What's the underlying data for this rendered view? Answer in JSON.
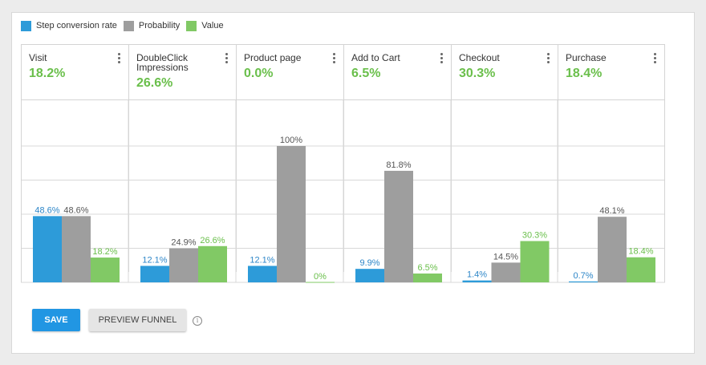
{
  "legend": {
    "items": [
      {
        "label": "Step conversion rate",
        "color": "#2d9bd9"
      },
      {
        "label": "Probability",
        "color": "#9e9e9e"
      },
      {
        "label": "Value",
        "color": "#81c965"
      }
    ]
  },
  "colors": {
    "step_conversion": "#2d9bd9",
    "probability": "#9e9e9e",
    "value": "#81c965",
    "value_text": "#6abf4b",
    "primary_button": "#2196e3"
  },
  "steps": [
    {
      "name": "Visit",
      "value": "18.2%"
    },
    {
      "name": "DoubleClick Impressions",
      "value": "26.6%"
    },
    {
      "name": "Product page",
      "value": "0.0%"
    },
    {
      "name": "Add to Cart",
      "value": "6.5%"
    },
    {
      "name": "Checkout",
      "value": "30.3%"
    },
    {
      "name": "Purchase",
      "value": "18.4%"
    }
  ],
  "chart_data": {
    "type": "bar",
    "categories": [
      "Visit",
      "DoubleClick Impressions",
      "Product page",
      "Add to Cart",
      "Checkout",
      "Purchase"
    ],
    "series": [
      {
        "name": "Step conversion rate",
        "values": [
          48.6,
          12.1,
          12.1,
          9.9,
          1.4,
          0.7
        ],
        "labels": [
          "48.6%",
          "12.1%",
          "12.1%",
          "9.9%",
          "1.4%",
          "0.7%"
        ]
      },
      {
        "name": "Probability",
        "values": [
          48.6,
          24.9,
          100,
          81.8,
          14.5,
          48.1
        ],
        "labels": [
          "48.6%",
          "24.9%",
          "100%",
          "81.8%",
          "14.5%",
          "48.1%"
        ]
      },
      {
        "name": "Value",
        "values": [
          18.2,
          26.6,
          0,
          6.5,
          30.3,
          18.4
        ],
        "labels": [
          "18.2%",
          "26.6%",
          "0%",
          "6.5%",
          "30.3%",
          "18.4%"
        ]
      }
    ],
    "ylim": [
      0,
      100
    ],
    "grid": true,
    "legend_position": "top-left"
  },
  "actions": {
    "save_label": "SAVE",
    "preview_label": "PREVIEW FUNNEL"
  },
  "icons": {
    "info": "info-icon",
    "menu": "more-vert-icon"
  }
}
